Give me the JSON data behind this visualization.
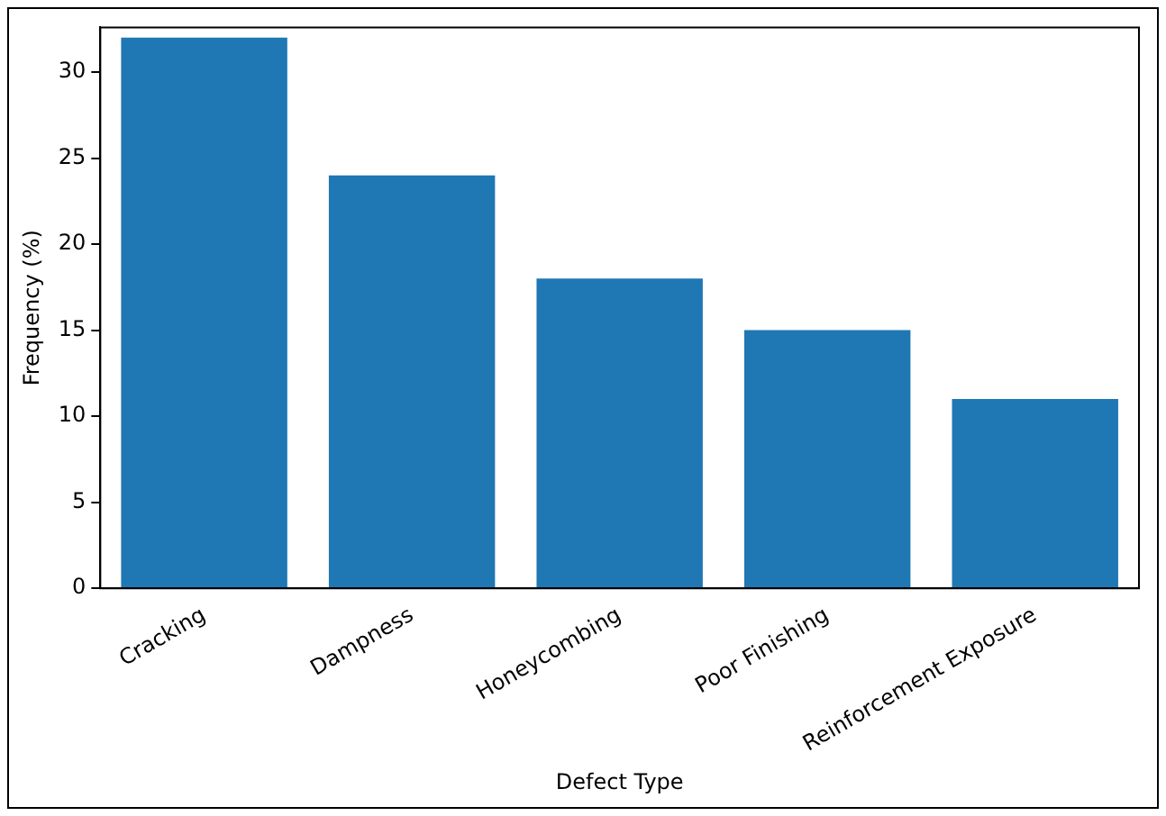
{
  "chart_data": {
    "type": "bar",
    "xlabel": "Defect Type",
    "ylabel": "Frequency (%)",
    "categories": [
      "Cracking",
      "Dampness",
      "Honeycombing",
      "Poor Finishing",
      "Reinforcement Exposure"
    ],
    "values": [
      32,
      24,
      18,
      15,
      11
    ],
    "color": "#1f77b4",
    "ylim": [
      0,
      32.6
    ],
    "yticks": [
      0,
      5,
      10,
      15,
      20,
      25,
      30
    ],
    "grid": false,
    "legend": false
  }
}
